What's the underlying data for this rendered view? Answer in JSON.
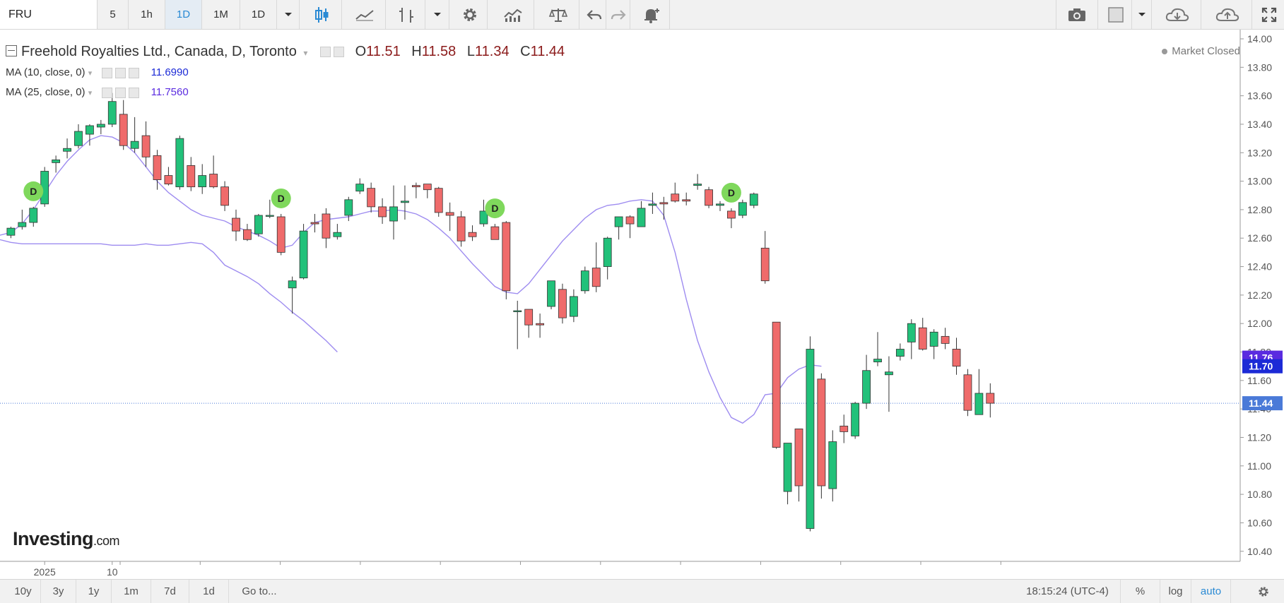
{
  "toolbar": {
    "symbol": "FRU",
    "intervals": [
      "5",
      "1h",
      "1D",
      "1M",
      "1D"
    ],
    "active_interval": "1D"
  },
  "legend": {
    "title": "Freehold Royalties Ltd., Canada, D, Toronto",
    "open_label": "O",
    "open": "11.51",
    "high_label": "H",
    "high": "11.58",
    "low_label": "L",
    "low": "11.34",
    "close_label": "C",
    "close": "11.44",
    "ma10_label": "MA (10, close, 0)",
    "ma10_value": "11.6990",
    "ma25_label": "MA (25, close, 0)",
    "ma25_value": "11.7560",
    "market_status": "Market Closed"
  },
  "logo": {
    "main": "Investing",
    "suffix": ".com"
  },
  "bottombar": {
    "ranges": [
      "10y",
      "3y",
      "1y",
      "1m",
      "7d",
      "1d",
      "Go to..."
    ],
    "clock": "18:15:24 (UTC-4)",
    "percent": "%",
    "log": "log",
    "auto": "auto"
  },
  "colors": {
    "up": "#22c17a",
    "down": "#ef6b6b",
    "ma": "#9e8cf0",
    "price_line": "#4a7ad8"
  },
  "chart_data": {
    "type": "candlestick",
    "ylim": [
      10.35,
      14.0
    ],
    "y_ticks": [
      "14.00",
      "13.80",
      "13.60",
      "13.40",
      "13.20",
      "13.00",
      "12.80",
      "12.60",
      "12.40",
      "12.20",
      "12.00",
      "11.80",
      "11.60",
      "11.40",
      "11.20",
      "11.00",
      "10.80",
      "10.60",
      "10.40"
    ],
    "x_tick_labels": [
      {
        "label": "2025",
        "index": 3
      },
      {
        "label": "10",
        "index": 9
      }
    ],
    "price_labels": [
      {
        "label": "11.76",
        "value": 11.76,
        "color": "#5a2be0"
      },
      {
        "label": "11.70",
        "value": 11.7,
        "color": "#1c2ad6"
      },
      {
        "label": "11.44",
        "value": 11.44,
        "color": "#4a7ad8"
      }
    ],
    "current_price": 11.44,
    "dividend_marker": "D",
    "dividend_indices": [
      2,
      24,
      43,
      64
    ],
    "candles": [
      [
        12.62,
        12.68,
        12.6,
        12.67
      ],
      [
        12.68,
        12.8,
        12.66,
        12.71
      ],
      [
        12.71,
        12.82,
        12.68,
        12.81
      ],
      [
        12.84,
        13.1,
        12.82,
        13.07
      ],
      [
        13.13,
        13.18,
        13.06,
        13.15
      ],
      [
        13.21,
        13.3,
        13.16,
        13.23
      ],
      [
        13.25,
        13.4,
        13.23,
        13.35
      ],
      [
        13.33,
        13.4,
        13.25,
        13.39
      ],
      [
        13.38,
        13.43,
        13.33,
        13.4
      ],
      [
        13.4,
        13.62,
        13.38,
        13.56
      ],
      [
        13.47,
        13.57,
        13.22,
        13.25
      ],
      [
        13.23,
        13.45,
        13.2,
        13.28
      ],
      [
        13.32,
        13.42,
        13.1,
        13.17
      ],
      [
        13.18,
        13.22,
        12.94,
        13.01
      ],
      [
        13.04,
        13.1,
        12.97,
        12.98
      ],
      [
        12.96,
        13.32,
        12.94,
        13.3
      ],
      [
        13.11,
        13.17,
        12.93,
        12.96
      ],
      [
        12.96,
        13.12,
        12.91,
        13.04
      ],
      [
        13.05,
        13.18,
        12.95,
        12.96
      ],
      [
        12.96,
        13.0,
        12.79,
        12.83
      ],
      [
        12.74,
        12.8,
        12.58,
        12.65
      ],
      [
        12.66,
        12.7,
        12.58,
        12.59
      ],
      [
        12.63,
        12.77,
        12.61,
        12.76
      ],
      [
        12.76,
        12.87,
        12.74,
        12.76
      ],
      [
        12.75,
        12.77,
        12.48,
        12.5
      ],
      [
        12.25,
        12.33,
        12.07,
        12.3
      ],
      [
        12.32,
        12.7,
        12.31,
        12.65
      ],
      [
        12.71,
        12.77,
        12.64,
        12.7
      ],
      [
        12.77,
        12.81,
        12.53,
        12.6
      ],
      [
        12.61,
        12.7,
        12.59,
        12.64
      ],
      [
        12.76,
        12.89,
        12.72,
        12.87
      ],
      [
        12.93,
        13.02,
        12.91,
        12.98
      ],
      [
        12.95,
        12.99,
        12.78,
        12.82
      ],
      [
        12.82,
        12.88,
        12.7,
        12.75
      ],
      [
        12.72,
        12.97,
        12.59,
        12.82
      ],
      [
        12.85,
        12.97,
        12.73,
        12.86
      ],
      [
        12.97,
        12.99,
        12.88,
        12.96
      ],
      [
        12.98,
        12.98,
        12.88,
        12.94
      ],
      [
        12.95,
        12.96,
        12.75,
        12.78
      ],
      [
        12.78,
        12.85,
        12.65,
        12.76
      ],
      [
        12.75,
        12.79,
        12.54,
        12.58
      ],
      [
        12.64,
        12.69,
        12.58,
        12.61
      ],
      [
        12.7,
        12.87,
        12.68,
        12.79
      ],
      [
        12.68,
        12.7,
        12.59,
        12.59
      ],
      [
        12.71,
        12.72,
        12.17,
        12.23
      ],
      [
        12.09,
        12.16,
        11.82,
        12.09
      ],
      [
        12.1,
        12.1,
        11.9,
        11.99
      ],
      [
        12.0,
        12.07,
        11.9,
        11.99
      ],
      [
        12.12,
        12.3,
        12.1,
        12.3
      ],
      [
        12.24,
        12.28,
        12.0,
        12.04
      ],
      [
        12.05,
        12.24,
        12.01,
        12.19
      ],
      [
        12.23,
        12.4,
        12.21,
        12.37
      ],
      [
        12.39,
        12.57,
        12.22,
        12.26
      ],
      [
        12.4,
        12.61,
        12.31,
        12.6
      ],
      [
        12.68,
        12.74,
        12.59,
        12.75
      ],
      [
        12.75,
        12.76,
        12.6,
        12.7
      ],
      [
        12.68,
        12.86,
        12.68,
        12.81
      ],
      [
        12.83,
        12.92,
        12.77,
        12.84
      ],
      [
        12.85,
        12.89,
        12.73,
        12.84
      ],
      [
        12.91,
        12.99,
        12.85,
        12.86
      ],
      [
        12.87,
        12.92,
        12.83,
        12.86
      ],
      [
        12.97,
        13.05,
        12.94,
        12.98
      ],
      [
        12.94,
        12.96,
        12.81,
        12.83
      ],
      [
        12.83,
        12.86,
        12.79,
        12.84
      ],
      [
        12.79,
        12.81,
        12.67,
        12.74
      ],
      [
        12.76,
        12.87,
        12.74,
        12.85
      ],
      [
        12.83,
        12.92,
        12.81,
        12.91
      ],
      [
        12.53,
        12.65,
        12.28,
        12.3
      ],
      [
        12.01,
        12.01,
        11.12,
        11.13
      ],
      [
        10.82,
        11.15,
        10.73,
        11.16
      ],
      [
        11.26,
        11.26,
        10.75,
        10.86
      ],
      [
        10.56,
        11.91,
        10.54,
        11.82
      ],
      [
        11.61,
        11.65,
        10.77,
        10.86
      ],
      [
        10.84,
        11.25,
        10.75,
        11.17
      ],
      [
        11.28,
        11.36,
        11.16,
        11.24
      ],
      [
        11.21,
        11.45,
        11.19,
        11.44
      ],
      [
        11.44,
        11.78,
        11.4,
        11.67
      ],
      [
        11.73,
        11.94,
        11.7,
        11.75
      ],
      [
        11.64,
        11.77,
        11.38,
        11.66
      ],
      [
        11.77,
        11.86,
        11.74,
        11.82
      ],
      [
        11.87,
        12.03,
        11.75,
        12.0
      ],
      [
        11.97,
        12.04,
        11.81,
        11.82
      ],
      [
        11.84,
        11.96,
        11.75,
        11.94
      ],
      [
        11.91,
        11.97,
        11.82,
        11.86
      ],
      [
        11.82,
        11.9,
        11.64,
        11.7
      ],
      [
        11.64,
        11.68,
        11.35,
        11.39
      ],
      [
        11.36,
        11.68,
        11.36,
        11.51
      ],
      [
        11.51,
        11.58,
        11.34,
        11.44
      ]
    ],
    "ma10": [
      12.62,
      12.64,
      12.7,
      12.8,
      12.92,
      13.04,
      13.14,
      13.22,
      13.29,
      13.32,
      13.31,
      13.27,
      13.2,
      13.1,
      13.0,
      12.92,
      12.86,
      12.8,
      12.76,
      12.74,
      12.72,
      12.68,
      12.65,
      12.62,
      12.58,
      12.53,
      12.55,
      12.64,
      12.71,
      12.73,
      12.74,
      12.75,
      12.77,
      12.79,
      12.79,
      12.8,
      12.79,
      12.77,
      12.73,
      12.67,
      12.6,
      12.51,
      12.42,
      12.34,
      12.26,
      12.22,
      12.21,
      12.28,
      12.38,
      12.48,
      12.58,
      12.66,
      12.74,
      12.8,
      12.83,
      12.84,
      12.86,
      12.87,
      12.86,
      12.76,
      12.5,
      12.17,
      11.88,
      11.66,
      11.48,
      11.34,
      11.3,
      11.36,
      11.5,
      11.51,
      11.62,
      11.68,
      11.71,
      11.7
    ],
    "ma10_offset": 14,
    "ma25": [
      13.37,
      13.31,
      13.25,
      13.19,
      13.15,
      13.1,
      13.07,
      13.04,
      13.01,
      12.99,
      12.97,
      12.95,
      12.93,
      12.91,
      12.89,
      12.86,
      12.83,
      12.8,
      12.76,
      12.73,
      12.71,
      12.69,
      12.67,
      12.65,
      12.63,
      12.61,
      12.59,
      12.57,
      12.56,
      12.56,
      12.56,
      12.56,
      12.56,
      12.56,
      12.56,
      12.56,
      12.55,
      12.55,
      12.55,
      12.56,
      12.55,
      12.55,
      12.56,
      12.57,
      12.56,
      12.5,
      12.41,
      12.37,
      12.33,
      12.28,
      12.21,
      12.15,
      12.08,
      12.02,
      11.95,
      11.88,
      11.8
    ],
    "ma25_offset": 27
  }
}
